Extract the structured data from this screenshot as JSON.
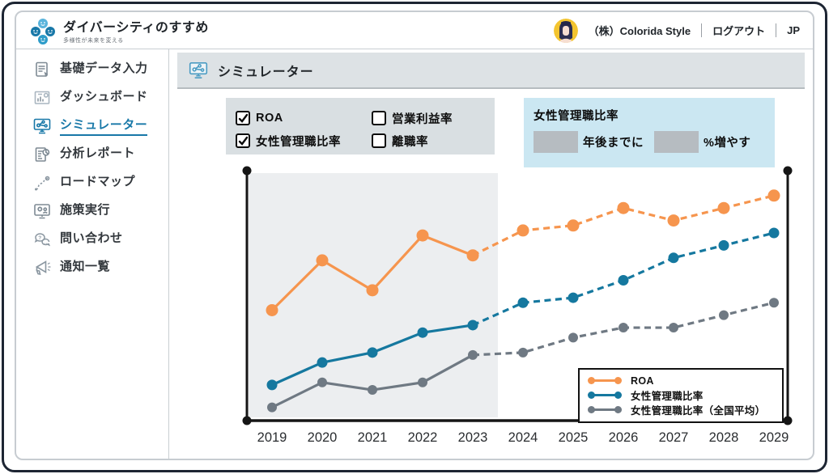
{
  "header": {
    "app_title": "ダイバーシティのすすめ",
    "app_subtitle": "多様性が未来を変える",
    "company": "（株）Colorida Style",
    "logout_label": "ログアウト",
    "lang_label": "JP"
  },
  "sidebar": {
    "items": [
      {
        "label": "基礎データ入力",
        "icon": "form-input-icon",
        "active": false
      },
      {
        "label": "ダッシュボード",
        "icon": "dashboard-icon",
        "active": false
      },
      {
        "label": "シミュレーター",
        "icon": "simulator-icon",
        "active": true
      },
      {
        "label": "分析レポート",
        "icon": "report-icon",
        "active": false
      },
      {
        "label": "ロードマップ",
        "icon": "roadmap-icon",
        "active": false
      },
      {
        "label": "施策実行",
        "icon": "execute-icon",
        "active": false
      },
      {
        "label": "問い合わせ",
        "icon": "inquiry-icon",
        "active": false
      },
      {
        "label": "通知一覧",
        "icon": "notice-icon",
        "active": false
      }
    ]
  },
  "main": {
    "page_title": "シミュレーター",
    "metric_checkboxes": [
      {
        "label": "ROA",
        "checked": true
      },
      {
        "label": "営業利益率",
        "checked": false
      },
      {
        "label": "女性管理職比率",
        "checked": true
      },
      {
        "label": "離職率",
        "checked": false
      }
    ],
    "target_panel": {
      "title": "女性管理職比率",
      "years_input_value": "",
      "between_text": "年後までに",
      "percent_input_value": "",
      "suffix_text": "%増やす"
    }
  },
  "chart_data": {
    "type": "line",
    "x": [
      2019,
      2020,
      2021,
      2022,
      2023,
      2024,
      2025,
      2026,
      2027,
      2028,
      2029
    ],
    "series": [
      {
        "name": "女性管理職比率（全国平均）",
        "color": "#6f7983",
        "dot_r": 6,
        "values": [
          5,
          15,
          12,
          15,
          26,
          27,
          33,
          37,
          37,
          42,
          47
        ]
      },
      {
        "name": "女性管理職比率",
        "color": "#15789f",
        "dot_r": 6.5,
        "values": [
          14,
          23,
          27,
          35,
          38,
          47,
          49,
          56,
          65,
          70,
          75
        ]
      },
      {
        "name": "ROA",
        "color": "#f6954e",
        "dot_r": 7.5,
        "values": [
          44,
          64,
          52,
          74,
          66,
          76,
          78,
          85,
          80,
          85,
          90
        ]
      }
    ],
    "legend_order": [
      "ROA",
      "女性管理職比率",
      "女性管理職比率（全国平均）"
    ],
    "solid_until_x": 2023,
    "history_shading": {
      "from_x": 2019,
      "to_x": 2023.5,
      "color": "#eceef0"
    },
    "axis_color": "#151515",
    "ylim": [
      0,
      100
    ],
    "y_axis_labels_visible": false,
    "legend_position": "bottom-right"
  }
}
